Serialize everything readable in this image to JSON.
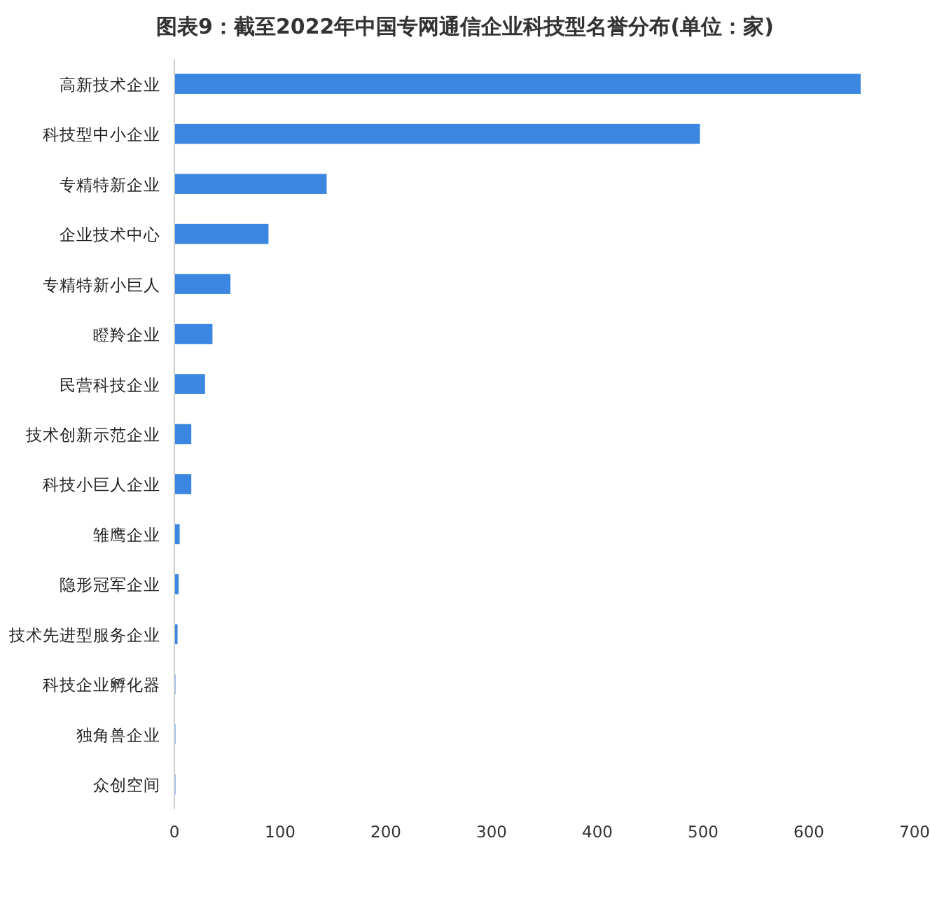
{
  "chart_data": {
    "type": "bar",
    "orientation": "horizontal",
    "title": "图表9：截至2022年中国专网通信企业科技型名誉分布(单位：家)",
    "categories": [
      "高新技术企业",
      "科技型中小企业",
      "专精特新企业",
      "企业技术中心",
      "专精特新小巨人",
      "瞪羚企业",
      "民营科技企业",
      "技术创新示范企业",
      "科技小巨人企业",
      "雏鹰企业",
      "隐形冠军企业",
      "技术先进型服务企业",
      "科技企业孵化器",
      "独角兽企业",
      "众创空间"
    ],
    "values": [
      649,
      497,
      144,
      89,
      53,
      36,
      29,
      16,
      16,
      5,
      4,
      3,
      1,
      1,
      1
    ],
    "color": "#3a86e0",
    "xlim": [
      0,
      700
    ],
    "xticks": [
      0,
      100,
      200,
      300,
      400,
      500,
      600,
      700
    ],
    "grid": false
  }
}
